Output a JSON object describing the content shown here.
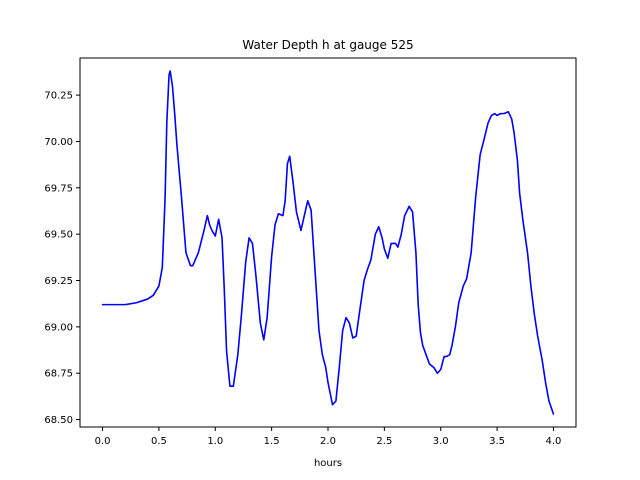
{
  "chart_data": {
    "type": "line",
    "title": "Water Depth h at gauge 525",
    "xlabel": "hours",
    "ylabel": "",
    "xlim": [
      -0.2,
      4.2
    ],
    "ylim": [
      68.46,
      70.45
    ],
    "grid": false,
    "xticks": [
      0.0,
      0.5,
      1.0,
      1.5,
      2.0,
      2.5,
      3.0,
      3.5,
      4.0
    ],
    "xtick_labels": [
      "0.0",
      "0.5",
      "1.0",
      "1.5",
      "2.0",
      "2.5",
      "3.0",
      "3.5",
      "4.0"
    ],
    "yticks": [
      68.5,
      68.75,
      69.0,
      69.25,
      69.5,
      69.75,
      70.0,
      70.25
    ],
    "ytick_labels": [
      "68.50",
      "68.75",
      "69.00",
      "69.25",
      "69.50",
      "69.75",
      "70.00",
      "70.25"
    ],
    "series": [
      {
        "color": "#0000ff",
        "x": [
          0.0,
          0.1,
          0.2,
          0.3,
          0.4,
          0.45,
          0.5,
          0.53,
          0.55,
          0.555,
          0.57,
          0.59,
          0.6,
          0.62,
          0.64,
          0.66,
          0.7,
          0.74,
          0.78,
          0.8,
          0.85,
          0.9,
          0.93,
          0.95,
          0.97,
          1.0,
          1.03,
          1.06,
          1.08,
          1.1,
          1.13,
          1.16,
          1.2,
          1.23,
          1.27,
          1.3,
          1.33,
          1.36,
          1.4,
          1.43,
          1.46,
          1.5,
          1.53,
          1.56,
          1.6,
          1.62,
          1.64,
          1.66,
          1.69,
          1.72,
          1.76,
          1.79,
          1.82,
          1.85,
          1.88,
          1.92,
          1.95,
          1.98,
          2.0,
          2.04,
          2.07,
          2.1,
          2.13,
          2.16,
          2.19,
          2.22,
          2.25,
          2.28,
          2.32,
          2.35,
          2.38,
          2.42,
          2.45,
          2.48,
          2.5,
          2.53,
          2.56,
          2.6,
          2.62,
          2.65,
          2.68,
          2.72,
          2.75,
          2.78,
          2.8,
          2.82,
          2.84,
          2.87,
          2.9,
          2.94,
          2.97,
          3.0,
          3.03,
          3.05,
          3.08,
          3.1,
          3.13,
          3.16,
          3.2,
          3.23,
          3.27,
          3.31,
          3.35,
          3.38,
          3.42,
          3.45,
          3.48,
          3.5,
          3.53,
          3.56,
          3.6,
          3.63,
          3.65,
          3.68,
          3.7,
          3.73,
          3.77,
          3.8,
          3.83,
          3.86,
          3.9,
          3.93,
          3.96,
          4.0
        ],
        "y": [
          69.12,
          69.12,
          69.12,
          69.13,
          69.15,
          69.17,
          69.22,
          69.32,
          69.62,
          69.7,
          70.1,
          70.36,
          70.38,
          70.3,
          70.15,
          69.98,
          69.7,
          69.4,
          69.33,
          69.33,
          69.4,
          69.52,
          69.6,
          69.55,
          69.52,
          69.49,
          69.58,
          69.48,
          69.2,
          68.87,
          68.68,
          68.68,
          68.85,
          69.05,
          69.35,
          69.48,
          69.45,
          69.28,
          69.02,
          68.93,
          69.05,
          69.38,
          69.55,
          69.61,
          69.6,
          69.68,
          69.88,
          69.92,
          69.78,
          69.62,
          69.52,
          69.6,
          69.68,
          69.63,
          69.35,
          68.98,
          68.85,
          68.78,
          68.7,
          68.58,
          68.6,
          68.78,
          68.98,
          69.05,
          69.02,
          68.94,
          68.95,
          69.08,
          69.25,
          69.31,
          69.36,
          69.5,
          69.54,
          69.48,
          69.42,
          69.37,
          69.45,
          69.45,
          69.43,
          69.5,
          69.6,
          69.65,
          69.62,
          69.4,
          69.12,
          68.97,
          68.9,
          68.85,
          68.8,
          68.78,
          68.75,
          68.77,
          68.84,
          68.84,
          68.85,
          68.9,
          69.0,
          69.13,
          69.22,
          69.26,
          69.4,
          69.7,
          69.93,
          70.0,
          70.1,
          70.14,
          70.15,
          70.14,
          70.15,
          70.15,
          70.16,
          70.12,
          70.05,
          69.9,
          69.72,
          69.57,
          69.4,
          69.22,
          69.07,
          68.95,
          68.82,
          68.7,
          68.6,
          68.53
        ]
      }
    ]
  }
}
